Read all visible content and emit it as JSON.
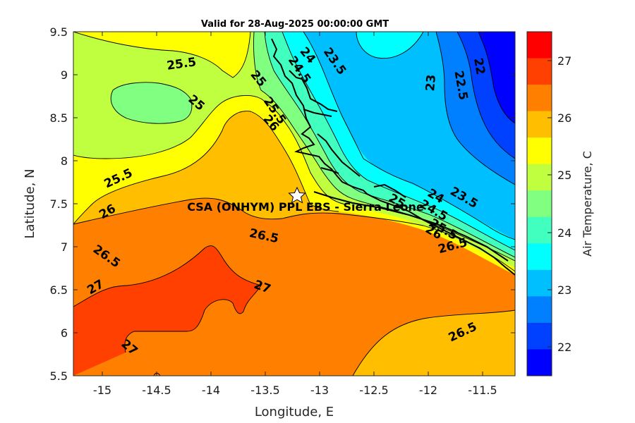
{
  "figure": {
    "title": "Valid for 28-Aug-2025 00:00:00 GMT",
    "xlabel": "Longitude, E",
    "ylabel": "Latitude, N",
    "x_ticks": [
      "-15",
      "-14.5",
      "-14",
      "-13.5",
      "-13",
      "-12.5",
      "-12",
      "-11.5"
    ],
    "y_ticks": [
      "9.5",
      "9",
      "8.5",
      "8",
      "7.5",
      "7",
      "6.5",
      "6",
      "5.5"
    ],
    "colorbar": {
      "label": "Air Temperature, C",
      "ticks": [
        "27",
        "26",
        "25",
        "24",
        "23",
        "22"
      ],
      "colors": [
        "#ff0000",
        "#ff4000",
        "#ff8000",
        "#ffbf00",
        "#ffff00",
        "#bfff40",
        "#80ff80",
        "#40ffbf",
        "#00ffff",
        "#00bfff",
        "#0080ff",
        "#0040ff",
        "#0000ff"
      ]
    },
    "site": {
      "label": "CSA (ONHYM) PPL EBS  - Sierra Leone",
      "marker": "star-icon"
    },
    "contour_labels": [
      "25.5",
      "25",
      "25",
      "24",
      "24.5",
      "23.5",
      "23",
      "22.5",
      "22",
      "25.5",
      "26",
      "25.5",
      "26",
      "26.5",
      "26.5",
      "27",
      "27",
      "27",
      "26.5",
      "25",
      "24",
      "23.5",
      "24.5",
      "25.5",
      "26",
      "26.5"
    ]
  },
  "chart_data": {
    "type": "heatmap",
    "title": "Valid for 28-Aug-2025 00:00:00 GMT",
    "xlabel": "Longitude, E",
    "ylabel": "Latitude, N",
    "xlim": [
      -15.3,
      -11.25
    ],
    "ylim": [
      5.5,
      9.5
    ],
    "colorbar_label": "Air Temperature, C",
    "colorbar_range": [
      21.5,
      27.5
    ],
    "contour_levels": [
      22,
      22.5,
      23,
      23.5,
      24,
      24.5,
      25,
      25.5,
      26,
      26.5,
      27
    ],
    "site": {
      "label": "CSA (ONHYM) PPL EBS  - Sierra Leone",
      "lon": -13.23,
      "lat": 7.6
    }
  }
}
